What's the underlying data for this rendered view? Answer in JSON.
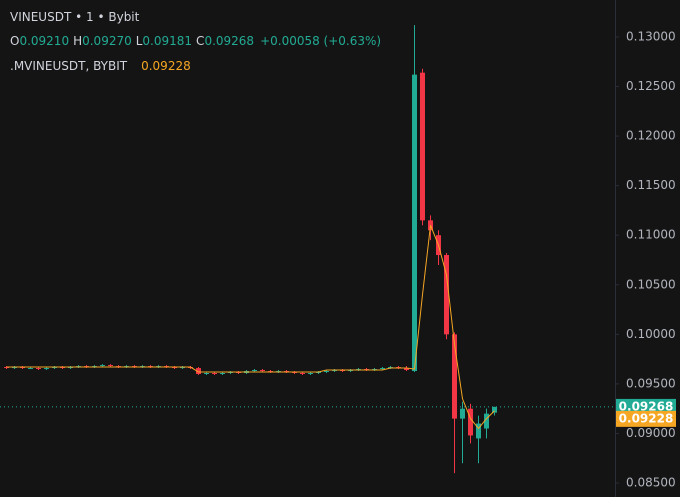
{
  "chart_data": {
    "type": "candlestick",
    "symbol": "VINEUSDT",
    "interval": "1",
    "exchange": "Bybit",
    "ohlc_legend": [
      {
        "key": "O",
        "value": "0.09210"
      },
      {
        "key": "H",
        "value": "0.09270"
      },
      {
        "key": "L",
        "value": "0.09181"
      },
      {
        "key": "C",
        "value": "0.09268"
      }
    ],
    "change": "+0.00058 (+0.63%)",
    "up_color": "#22ab94",
    "down_color": "#f23645",
    "categories": [
      null,
      null,
      null,
      null,
      null,
      null,
      null,
      null,
      null,
      null,
      null,
      null,
      null,
      null,
      null,
      null,
      null,
      null,
      null,
      null,
      null,
      null,
      null,
      null,
      null,
      null,
      null,
      null,
      null,
      null,
      null,
      null,
      null,
      null,
      null,
      null,
      null,
      null,
      null,
      null,
      null,
      null,
      null,
      null,
      null,
      null,
      null,
      null,
      null,
      null,
      null,
      null,
      null,
      null,
      null,
      null,
      null,
      null,
      null,
      null,
      null,
      null
    ],
    "open": [
      0.0967,
      0.0966,
      0.0967,
      0.0966,
      0.0966,
      0.0965,
      0.0966,
      0.0967,
      0.0966,
      0.0967,
      0.0968,
      0.0967,
      0.0968,
      0.0969,
      0.0968,
      0.0967,
      0.0968,
      0.0967,
      0.0968,
      0.0967,
      0.0968,
      0.0967,
      0.0966,
      0.0967,
      0.0966,
      0.096,
      0.0961,
      0.096,
      0.0961,
      0.0962,
      0.0961,
      0.0963,
      0.0964,
      0.0963,
      0.0962,
      0.0963,
      0.0962,
      0.0961,
      0.096,
      0.0961,
      0.0962,
      0.0963,
      0.0964,
      0.0963,
      0.0964,
      0.0965,
      0.0964,
      0.0965,
      0.0966,
      0.0967,
      0.0966,
      0.0963,
      0.1264,
      0.1115,
      0.11,
      0.108,
      0.1,
      0.0915,
      0.0925,
      0.0895,
      0.0905,
      0.0921
    ],
    "high": [
      0.0968,
      0.0968,
      0.0968,
      0.0967,
      0.0967,
      0.0967,
      0.0968,
      0.0968,
      0.0968,
      0.0969,
      0.0969,
      0.0969,
      0.097,
      0.097,
      0.0969,
      0.0969,
      0.0969,
      0.0969,
      0.0969,
      0.0969,
      0.0969,
      0.0968,
      0.0968,
      0.0968,
      0.0967,
      0.0962,
      0.0962,
      0.0962,
      0.0963,
      0.0963,
      0.0964,
      0.0965,
      0.0965,
      0.0964,
      0.0964,
      0.0964,
      0.0963,
      0.0962,
      0.0962,
      0.0963,
      0.0964,
      0.0965,
      0.0965,
      0.0965,
      0.0966,
      0.0966,
      0.0966,
      0.0967,
      0.0968,
      0.0968,
      0.0968,
      0.1312,
      0.1268,
      0.112,
      0.1105,
      0.1082,
      0.1002,
      0.0932,
      0.093,
      0.0918,
      0.0925,
      0.0927
    ],
    "low": [
      0.0965,
      0.0965,
      0.0965,
      0.0965,
      0.0964,
      0.0964,
      0.0965,
      0.0965,
      0.0965,
      0.0966,
      0.0966,
      0.0966,
      0.0967,
      0.0967,
      0.0966,
      0.0966,
      0.0966,
      0.0966,
      0.0966,
      0.0966,
      0.0966,
      0.0965,
      0.0965,
      0.0965,
      0.0959,
      0.0959,
      0.0959,
      0.0959,
      0.096,
      0.096,
      0.096,
      0.0962,
      0.0962,
      0.0961,
      0.0961,
      0.0961,
      0.096,
      0.0959,
      0.0959,
      0.096,
      0.0961,
      0.0962,
      0.0962,
      0.0962,
      0.0963,
      0.0963,
      0.0963,
      0.0964,
      0.0965,
      0.0965,
      0.0963,
      0.0962,
      0.111,
      0.1095,
      0.107,
      0.0995,
      0.086,
      0.087,
      0.089,
      0.087,
      0.0895,
      0.09181
    ],
    "close": [
      0.0966,
      0.0967,
      0.0966,
      0.0966,
      0.0965,
      0.0966,
      0.0967,
      0.0966,
      0.0967,
      0.0968,
      0.0967,
      0.0968,
      0.0969,
      0.0968,
      0.0967,
      0.0968,
      0.0967,
      0.0968,
      0.0967,
      0.0968,
      0.0967,
      0.0966,
      0.0967,
      0.0966,
      0.096,
      0.0961,
      0.096,
      0.0961,
      0.0962,
      0.0961,
      0.0963,
      0.0964,
      0.0963,
      0.0962,
      0.0963,
      0.0962,
      0.0961,
      0.096,
      0.0961,
      0.0962,
      0.0963,
      0.0964,
      0.0963,
      0.0964,
      0.0965,
      0.0964,
      0.0965,
      0.0966,
      0.0967,
      0.0966,
      0.0964,
      0.1262,
      0.1115,
      0.1105,
      0.108,
      0.1,
      0.0915,
      0.0925,
      0.0898,
      0.091,
      0.092,
      0.09268
    ],
    "overlay": {
      "name": ".MVINEUSDT, BYBIT",
      "value_label": "0.09228",
      "color": "#f5a623",
      "values": [
        0.0967,
        0.0967,
        0.0967,
        0.0967,
        0.0967,
        0.0967,
        0.0967,
        0.0967,
        0.0967,
        0.0967,
        0.0967,
        0.0967,
        0.0967,
        0.0967,
        0.0967,
        0.0967,
        0.0967,
        0.0967,
        0.0967,
        0.0967,
        0.0967,
        0.0967,
        0.0967,
        0.0967,
        0.0962,
        0.0962,
        0.0962,
        0.0962,
        0.0962,
        0.0962,
        0.0962,
        0.0962,
        0.0962,
        0.0962,
        0.0962,
        0.0962,
        0.0962,
        0.0962,
        0.0962,
        0.0962,
        0.0964,
        0.0964,
        0.0964,
        0.0964,
        0.0964,
        0.0964,
        0.0964,
        0.0964,
        0.0966,
        0.0966,
        0.0966,
        0.0965,
        0.104,
        0.111,
        0.109,
        0.106,
        0.099,
        0.0935,
        0.0915,
        0.0905,
        0.0915,
        0.09228
      ]
    },
    "last_price": {
      "value": 0.09268,
      "label": "0.09268",
      "color": "#22ab94"
    },
    "ylim": [
      0.08359,
      0.13373
    ],
    "yticks": [
      {
        "value": 0.13,
        "label": "0.13000"
      },
      {
        "value": 0.125,
        "label": "0.12500"
      },
      {
        "value": 0.12,
        "label": "0.12000"
      },
      {
        "value": 0.115,
        "label": "0.11500"
      },
      {
        "value": 0.11,
        "label": "0.11000"
      },
      {
        "value": 0.105,
        "label": "0.10500"
      },
      {
        "value": 0.1,
        "label": "0.10000"
      },
      {
        "value": 0.095,
        "label": "0.09500"
      },
      {
        "value": 0.09,
        "label": "0.09000"
      },
      {
        "value": 0.085,
        "label": "0.08500"
      }
    ]
  }
}
